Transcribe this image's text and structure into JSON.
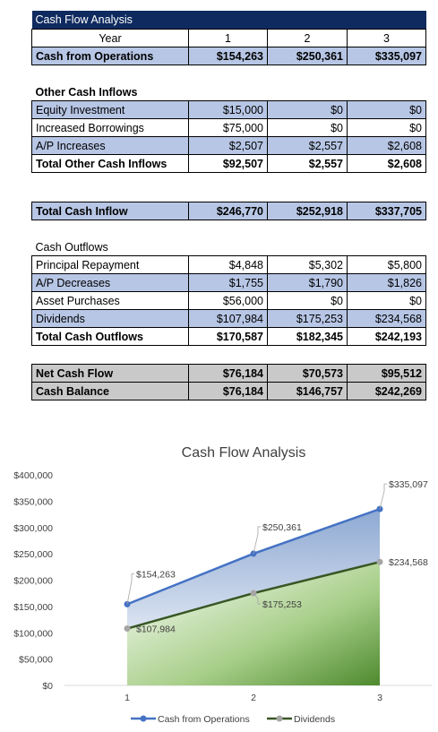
{
  "table": {
    "title": "Cash Flow Analysis",
    "year_label": "Year",
    "years": [
      "1",
      "2",
      "3"
    ],
    "ops": {
      "label": "Cash from Operations",
      "values": [
        "$154,263",
        "$250,361",
        "$335,097"
      ]
    },
    "other_inflows_title": "Other Cash Inflows",
    "other_inflows": [
      {
        "label": "Equity Investment",
        "values": [
          "$15,000",
          "$0",
          "$0"
        ],
        "shade": "blue"
      },
      {
        "label": "Increased Borrowings",
        "values": [
          "$75,000",
          "$0",
          "$0"
        ],
        "shade": "white"
      },
      {
        "label": "A/P Increases",
        "values": [
          "$2,507",
          "$2,557",
          "$2,608"
        ],
        "shade": "blue"
      }
    ],
    "total_other": {
      "label": "Total Other Cash Inflows",
      "values": [
        "$92,507",
        "$2,557",
        "$2,608"
      ]
    },
    "total_inflow": {
      "label": "Total Cash Inflow",
      "values": [
        "$246,770",
        "$252,918",
        "$337,705"
      ]
    },
    "outflows_title": "Cash Outflows",
    "outflows": [
      {
        "label": "Principal Repayment",
        "values": [
          "$4,848",
          "$5,302",
          "$5,800"
        ],
        "shade": "white"
      },
      {
        "label": "A/P Decreases",
        "values": [
          "$1,755",
          "$1,790",
          "$1,826"
        ],
        "shade": "blue"
      },
      {
        "label": "Asset Purchases",
        "values": [
          "$56,000",
          "$0",
          "$0"
        ],
        "shade": "white"
      },
      {
        "label": "Dividends",
        "values": [
          "$107,984",
          "$175,253",
          "$234,568"
        ],
        "shade": "blue"
      }
    ],
    "total_outflows": {
      "label": "Total Cash Outflows",
      "values": [
        "$170,587",
        "$182,345",
        "$242,193"
      ]
    },
    "net_cash_flow": {
      "label": "Net Cash Flow",
      "values": [
        "$76,184",
        "$70,573",
        "$95,512"
      ]
    },
    "cash_balance": {
      "label": "Cash Balance",
      "values": [
        "$76,184",
        "$146,757",
        "$242,269"
      ]
    }
  },
  "chart_data": {
    "type": "area",
    "title": "Cash Flow Analysis",
    "x": [
      "1",
      "2",
      "3"
    ],
    "ylim": [
      0,
      400000
    ],
    "yticks": [
      0,
      50000,
      100000,
      150000,
      200000,
      250000,
      300000,
      350000,
      400000
    ],
    "ytick_labels": [
      "$0",
      "$50,000",
      "$100,000",
      "$150,000",
      "$200,000",
      "$250,000",
      "$300,000",
      "$350,000",
      "$400,000"
    ],
    "series": [
      {
        "name": "Cash from Operations",
        "values": [
          154263,
          250361,
          335097
        ],
        "labels": [
          "$154,263",
          "$250,361",
          "$335,097"
        ],
        "color": "#4472c4"
      },
      {
        "name": "Dividends",
        "values": [
          107984,
          175253,
          234568
        ],
        "labels": [
          "$107,984",
          "$175,253",
          "$234,568"
        ],
        "color": "#375623"
      }
    ],
    "grid": false,
    "legend": "bottom"
  }
}
